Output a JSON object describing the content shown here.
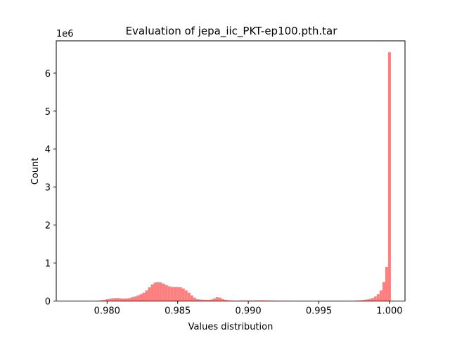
{
  "chart_data": {
    "type": "bar",
    "title": "Evaluation of jepa_iic_PKT-ep100.pth.tar",
    "xlabel": "Values distribution",
    "ylabel": "Count",
    "y_scale_label": "1e6",
    "xlim": [
      0.9764,
      1.0011
    ],
    "ylim": [
      0,
      6.85
    ],
    "x_ticks": [
      0.98,
      0.985,
      0.99,
      0.995,
      1.0
    ],
    "x_tick_labels": [
      "0.980",
      "0.985",
      "0.990",
      "0.995",
      "1.000"
    ],
    "y_ticks": [
      0,
      1,
      2,
      3,
      4,
      5,
      6
    ],
    "y_tick_labels": [
      "0",
      "1",
      "2",
      "3",
      "4",
      "5",
      "6"
    ],
    "bar_color": "#ff7f7f",
    "bin_width": 0.0002,
    "bin_lefts": [
      0.9789,
      0.9791,
      0.9793,
      0.9795,
      0.9797,
      0.9799,
      0.9801,
      0.9803,
      0.9805,
      0.9807,
      0.9809,
      0.9811,
      0.9813,
      0.9815,
      0.9817,
      0.9819,
      0.9821,
      0.9823,
      0.9825,
      0.9827,
      0.9829,
      0.9831,
      0.9833,
      0.9835,
      0.9837,
      0.9839,
      0.9841,
      0.9843,
      0.9845,
      0.9847,
      0.9849,
      0.9851,
      0.9853,
      0.9855,
      0.9857,
      0.9859,
      0.9861,
      0.9863,
      0.9865,
      0.9867,
      0.9869,
      0.9871,
      0.9873,
      0.9875,
      0.9877,
      0.9879,
      0.9881,
      0.9883,
      0.9885,
      0.9887,
      0.9889,
      0.9891,
      0.9893,
      0.9895,
      0.9897,
      0.9899,
      0.9901,
      0.9903,
      0.9905,
      0.9907,
      0.9909,
      0.9911,
      0.9913,
      0.9915,
      0.9917,
      0.9919,
      0.9921,
      0.9923,
      0.9925,
      0.9927,
      0.9929,
      0.9931,
      0.9971,
      0.9973,
      0.9975,
      0.9977,
      0.9979,
      0.9981,
      0.9983,
      0.9985,
      0.9987,
      0.9989,
      0.9991,
      0.9993,
      0.9995,
      0.9997,
      0.9999
    ],
    "values": [
      0.005,
      0.008,
      0.012,
      0.02,
      0.03,
      0.045,
      0.06,
      0.075,
      0.08,
      0.08,
      0.07,
      0.065,
      0.07,
      0.08,
      0.1,
      0.12,
      0.15,
      0.18,
      0.22,
      0.28,
      0.36,
      0.44,
      0.49,
      0.5,
      0.49,
      0.46,
      0.42,
      0.39,
      0.37,
      0.37,
      0.37,
      0.36,
      0.33,
      0.28,
      0.22,
      0.15,
      0.09,
      0.05,
      0.04,
      0.035,
      0.03,
      0.03,
      0.04,
      0.07,
      0.1,
      0.09,
      0.05,
      0.03,
      0.02,
      0.015,
      0.012,
      0.012,
      0.014,
      0.016,
      0.016,
      0.015,
      0.014,
      0.014,
      0.016,
      0.018,
      0.018,
      0.017,
      0.015,
      0.014,
      0.013,
      0.012,
      0.012,
      0.012,
      0.011,
      0.011,
      0.01,
      0.009,
      0.005,
      0.008,
      0.012,
      0.015,
      0.02,
      0.028,
      0.04,
      0.055,
      0.08,
      0.12,
      0.18,
      0.28,
      0.5,
      0.9,
      6.55
    ]
  }
}
